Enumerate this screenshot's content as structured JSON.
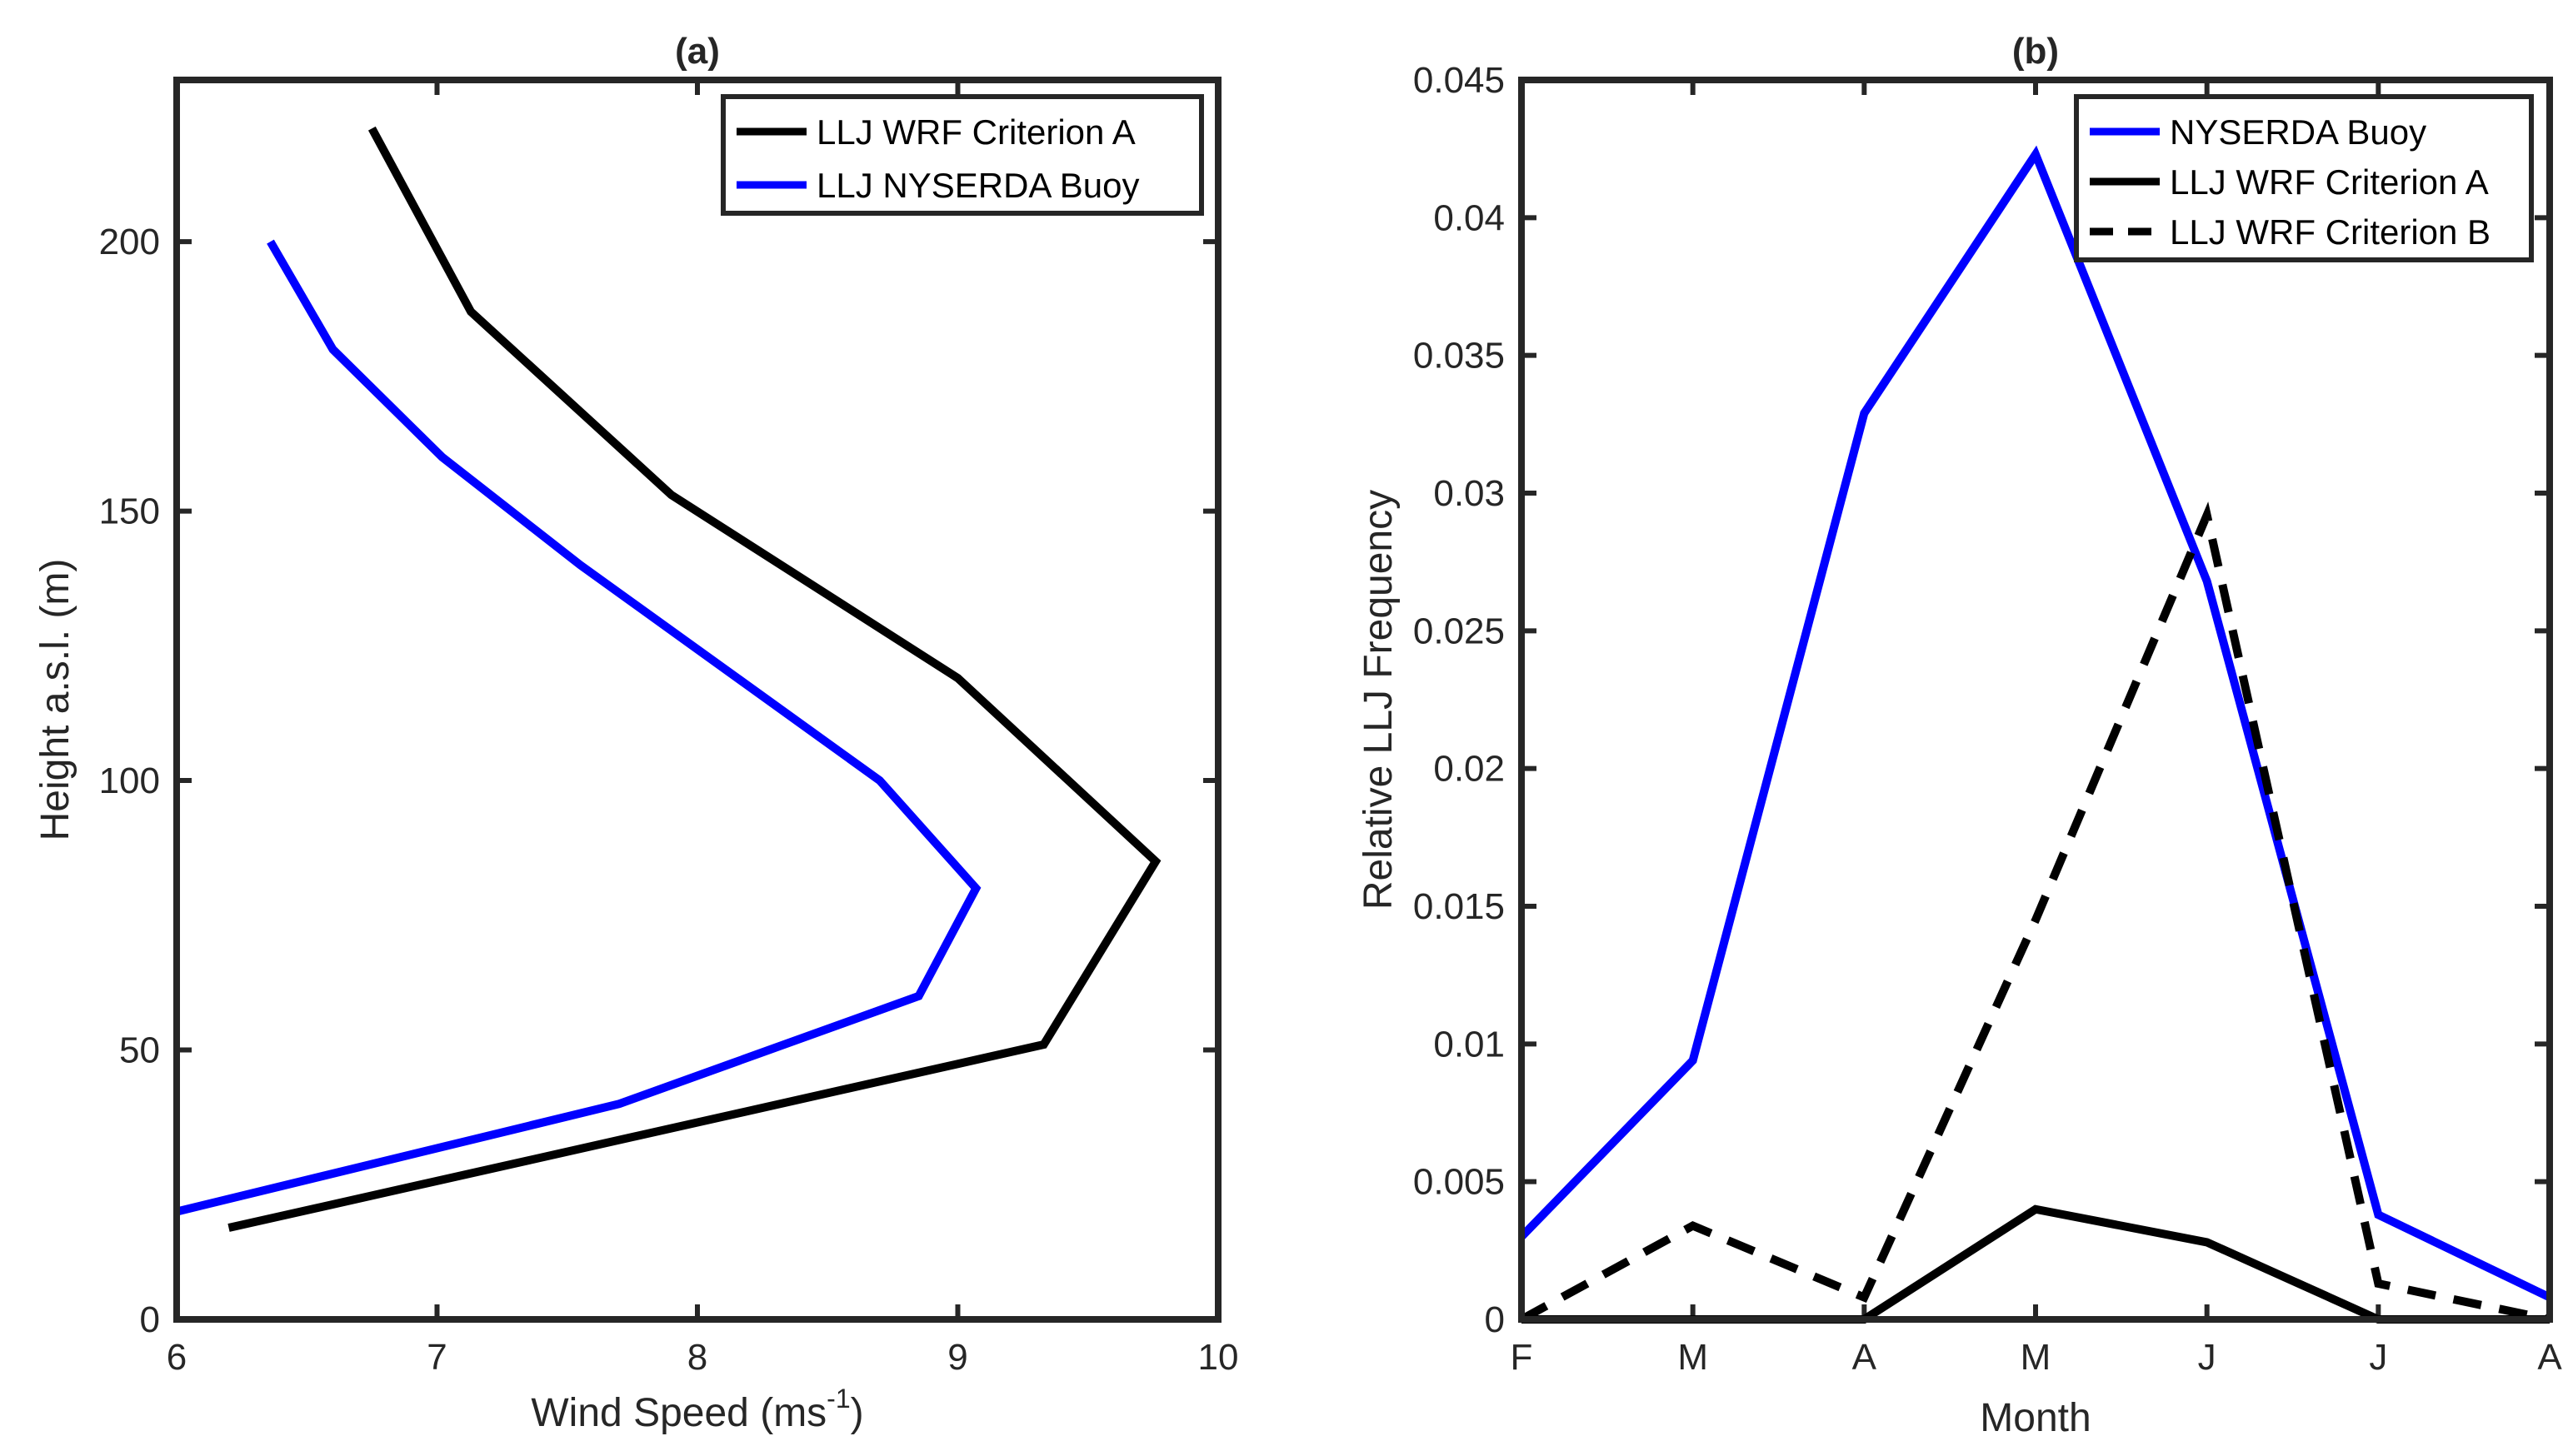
{
  "chart_data": [
    {
      "type": "line",
      "title": "(a)",
      "xlabel": "Wind Speed (ms",
      "xlabel_sup": "-1",
      "xlabel_end": ")",
      "ylabel": "Height a.s.l. (m)",
      "xlim": [
        6,
        10
      ],
      "ylim": [
        0,
        230
      ],
      "xticks": [
        6,
        7,
        8,
        9,
        10
      ],
      "yticks": [
        0,
        50,
        100,
        150,
        200
      ],
      "legend_position": "top-right",
      "series": [
        {
          "name": "LLJ WRF Criterion A",
          "color": "#000000",
          "dash": "solid",
          "x": [
            6.2,
            9.33,
            9.76,
            9.0,
            7.9,
            7.13,
            6.75
          ],
          "y": [
            17,
            51,
            85,
            119,
            153,
            187,
            221
          ]
        },
        {
          "name": "LLJ NYSERDA Buoy",
          "color": "#0000ff",
          "dash": "solid",
          "x": [
            6.0,
            7.7,
            8.85,
            9.07,
            8.7,
            7.55,
            7.02,
            6.6,
            6.36
          ],
          "y": [
            20,
            40,
            60,
            80,
            100,
            140,
            160,
            180,
            200
          ]
        }
      ]
    },
    {
      "type": "line",
      "title": "(b)",
      "xlabel": "Month",
      "ylabel": "Relative LLJ Frequency",
      "categories": [
        "F",
        "M",
        "A",
        "M",
        "J",
        "J",
        "A"
      ],
      "ylim": [
        0,
        0.045
      ],
      "yticks": [
        "0",
        "0.005",
        "0.01",
        "0.015",
        "0.02",
        "0.025",
        "0.03",
        "0.035",
        "0.04",
        "0.045"
      ],
      "legend_position": "top-right",
      "series": [
        {
          "name": "NYSERDA Buoy",
          "color": "#0000ff",
          "dash": "solid",
          "values": [
            0.003,
            0.0094,
            0.0329,
            0.0423,
            0.0268,
            0.0038,
            0.0008
          ]
        },
        {
          "name": "LLJ WRF Criterion A",
          "color": "#000000",
          "dash": "solid",
          "values": [
            0,
            0,
            0,
            0.004,
            0.0028,
            0,
            0
          ]
        },
        {
          "name": "LLJ WRF Criterion B",
          "color": "#000000",
          "dash": "dashed",
          "values": [
            0,
            0.0034,
            0.0008,
            0.0145,
            0.0292,
            0.0013,
            0
          ]
        }
      ]
    }
  ]
}
